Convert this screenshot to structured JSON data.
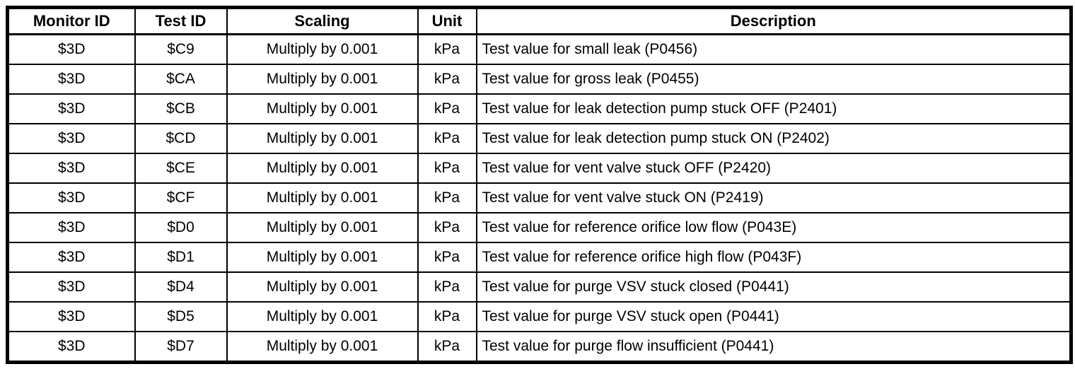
{
  "table": {
    "name": "monitor-test-results-table",
    "columns": [
      {
        "key": "monitor_id",
        "label": "Monitor ID",
        "align": "center"
      },
      {
        "key": "test_id",
        "label": "Test ID",
        "align": "center"
      },
      {
        "key": "scaling",
        "label": "Scaling",
        "align": "center"
      },
      {
        "key": "unit",
        "label": "Unit",
        "align": "center"
      },
      {
        "key": "description",
        "label": "Description",
        "align": "center"
      }
    ],
    "rows": [
      [
        "$3D",
        "$C9",
        "Multiply by 0.001",
        "kPa",
        "Test value for small leak (P0456)"
      ],
      [
        "$3D",
        "$CA",
        "Multiply by 0.001",
        "kPa",
        "Test value for gross leak (P0455)"
      ],
      [
        "$3D",
        "$CB",
        "Multiply by 0.001",
        "kPa",
        "Test value for leak detection pump stuck OFF (P2401)"
      ],
      [
        "$3D",
        "$CD",
        "Multiply by 0.001",
        "kPa",
        "Test value for leak detection pump stuck ON (P2402)"
      ],
      [
        "$3D",
        "$CE",
        "Multiply by 0.001",
        "kPa",
        "Test value for vent valve stuck OFF (P2420)"
      ],
      [
        "$3D",
        "$CF",
        "Multiply by 0.001",
        "kPa",
        "Test value for vent valve stuck ON (P2419)"
      ],
      [
        "$3D",
        "$D0",
        "Multiply by 0.001",
        "kPa",
        "Test value for reference orifice low flow (P043E)"
      ],
      [
        "$3D",
        "$D1",
        "Multiply by 0.001",
        "kPa",
        "Test value for reference orifice high flow (P043F)"
      ],
      [
        "$3D",
        "$D4",
        "Multiply by 0.001",
        "kPa",
        "Test value for purge VSV stuck closed (P0441)"
      ],
      [
        "$3D",
        "$D5",
        "Multiply by 0.001",
        "kPa",
        "Test value for purge VSV stuck open (P0441)"
      ],
      [
        "$3D",
        "$D7",
        "Multiply by 0.001",
        "kPa",
        "Test value for purge flow insufficient (P0441)"
      ]
    ],
    "colors": {
      "border": "#000000",
      "text": "#000000",
      "background": "#ffffff"
    }
  }
}
